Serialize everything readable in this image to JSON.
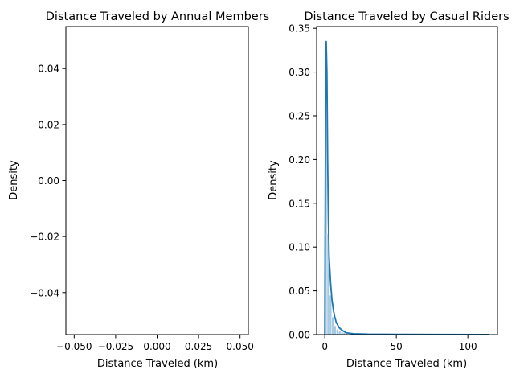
{
  "colors": {
    "line": "#1f77b4",
    "fill": "#1f77b4",
    "axes": "#000000",
    "background": "#ffffff"
  },
  "chart_data": [
    {
      "type": "area",
      "title": "Distance Traveled by Annual Members",
      "xlabel": "Distance Traveled (km)",
      "ylabel": "Density",
      "xlim": [
        -0.055,
        0.055
      ],
      "ylim": [
        -0.055,
        0.055
      ],
      "x_ticks": [
        "−0.050",
        "−0.025",
        "0.000",
        "0.025",
        "0.050"
      ],
      "x_tick_values": [
        -0.05,
        -0.025,
        0.0,
        0.025,
        0.05
      ],
      "y_ticks": [
        "−0.04",
        "−0.02",
        "0.00",
        "0.02",
        "0.04"
      ],
      "y_tick_values": [
        -0.04,
        -0.02,
        0.0,
        0.02,
        0.04
      ],
      "series": [],
      "grid": false
    },
    {
      "type": "area",
      "title": "Distance Traveled by Casual Riders",
      "xlabel": "Distance Traveled (km)",
      "ylabel": "Density",
      "xlim": [
        -5.7,
        120.7
      ],
      "ylim": [
        0,
        0.352
      ],
      "x_ticks": [
        "0",
        "50",
        "100"
      ],
      "x_tick_values": [
        0,
        50,
        100
      ],
      "y_ticks": [
        "0.00",
        "0.05",
        "0.10",
        "0.15",
        "0.20",
        "0.25",
        "0.30",
        "0.35"
      ],
      "y_tick_values": [
        0,
        0.05,
        0.1,
        0.15,
        0.2,
        0.25,
        0.3,
        0.35
      ],
      "histogram": {
        "bin_edges": [
          0,
          1.6,
          3.2,
          4.8,
          6.4,
          8.0,
          9.6,
          11.2,
          12.8,
          14.4,
          16.0
        ],
        "densities": [
          0.27,
          0.115,
          0.045,
          0.02,
          0.01,
          0.006,
          0.004,
          0.003,
          0.002,
          0.001
        ]
      },
      "kde": {
        "x": [
          0,
          0.5,
          1,
          1.5,
          2,
          2.5,
          3,
          4,
          5,
          6,
          7,
          8,
          10,
          12,
          15,
          20,
          30,
          50,
          80,
          115
        ],
        "y": [
          0.0,
          0.25,
          0.335,
          0.3,
          0.2,
          0.13,
          0.09,
          0.06,
          0.04,
          0.028,
          0.02,
          0.014,
          0.008,
          0.005,
          0.002,
          0.001,
          0.0005,
          0.0003,
          0.0002,
          0.0001
        ]
      },
      "grid": false
    }
  ]
}
